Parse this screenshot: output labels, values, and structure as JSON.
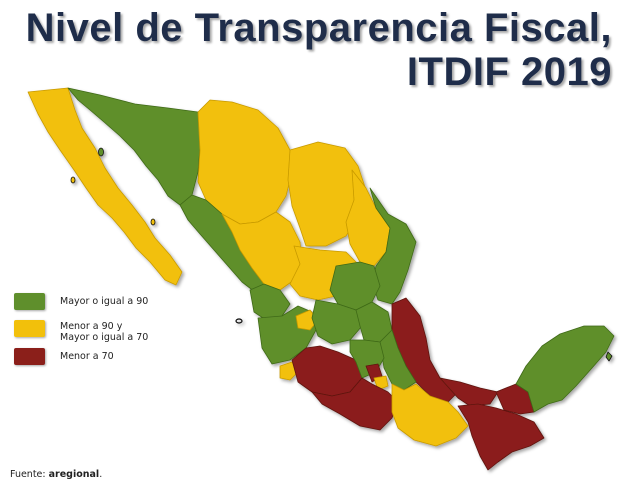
{
  "title": {
    "line1": "Nivel de Transparencia Fiscal,",
    "line2": "ITDIF 2019"
  },
  "legend": [
    {
      "label_line1": "Mayor o igual a 90",
      "label_line2": "",
      "color": "#5f8f2c"
    },
    {
      "label_line1": "Menor a 90 y",
      "label_line2": "Mayor o igual a 70",
      "color": "#f2c00b"
    },
    {
      "label_line1": "Menor a 70",
      "label_line2": "",
      "color": "#8b1f1a"
    }
  ],
  "source": {
    "prefix": "Fuente: ",
    "name": "aregional",
    "suffix": "."
  },
  "colors": {
    "high": "#5f8f2c",
    "mid": "#f2c00b",
    "low": "#8b1f1a",
    "title": "#1f2d4a"
  }
}
